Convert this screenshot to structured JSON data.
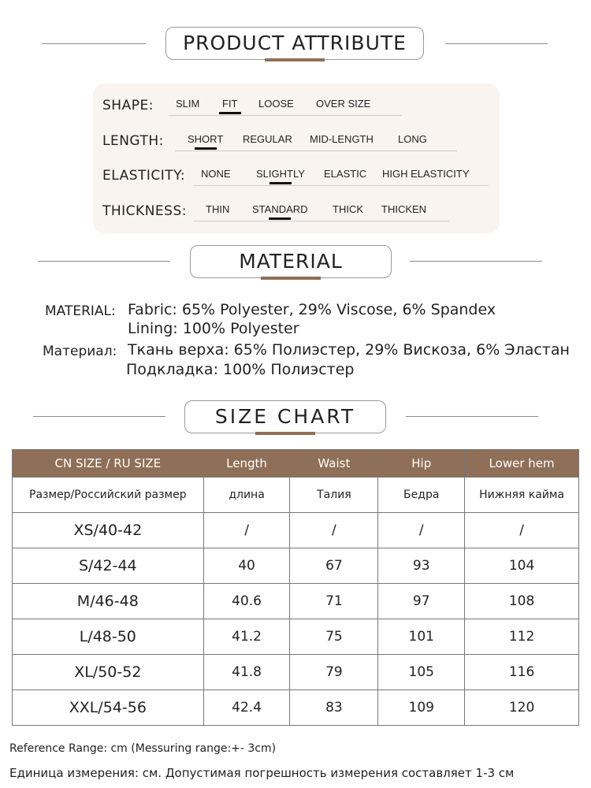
{
  "sections": {
    "attribute": "PRODUCT ATTRIBUTE",
    "material": "MATERIAL",
    "size_chart": "SIZE CHART"
  },
  "attributes": [
    {
      "label": "SHAPE:",
      "options": [
        "SLIM",
        "FIT",
        "LOOSE",
        "OVER SIZE"
      ],
      "selected": "FIT"
    },
    {
      "label": "LENGTH:",
      "options": [
        "SHORT",
        "REGULAR",
        "MID-LENGTH",
        "LONG"
      ],
      "selected": "SHORT"
    },
    {
      "label": "ELASTICITY:",
      "options": [
        "NONE",
        "SLIGHTLY",
        "ELASTIC",
        "HIGH ELASTICITY"
      ],
      "selected": "SLIGHTLY"
    },
    {
      "label": "THICKNESS:",
      "options": [
        "THIN",
        "STANDARD",
        "THICK",
        "THICKEN"
      ],
      "selected": "STANDARD"
    }
  ],
  "material": {
    "en_label": "MATERIAL:",
    "en_line1": "Fabric: 65% Polyester, 29% Viscose, 6% Spandex",
    "en_line2": "Lining: 100% Polyester",
    "ru_label": "Материал:",
    "ru_line1": "Ткань верха: 65% Полиэстер, 29% Вискоза, 6% Эластан",
    "ru_line2": "Подкладка: 100% Полиэстер"
  },
  "size_table": {
    "headers": [
      "CN SIZE / RU SIZE",
      "Length",
      "Waist",
      "Hip",
      "Lower hem"
    ],
    "sub_headers": [
      "Размер/Российский размер",
      "длина",
      "Талия",
      "Бедра",
      "Нижняя кайма"
    ],
    "rows": [
      [
        "XS/40-42",
        "/",
        "/",
        "/",
        "/"
      ],
      [
        "S/42-44",
        "40",
        "67",
        "93",
        "104"
      ],
      [
        "M/46-48",
        "40.6",
        "71",
        "97",
        "108"
      ],
      [
        "L/48-50",
        "41.2",
        "75",
        "101",
        "112"
      ],
      [
        "XL/50-52",
        "41.8",
        "79",
        "105",
        "116"
      ],
      [
        "XXL/54-56",
        "42.4",
        "83",
        "109",
        "120"
      ]
    ]
  },
  "footer": {
    "en": "Reference Range: cm (Messuring range:+- 3cm)",
    "ru": "Единица измерения: см. Допустимая погрешность измерения составляет 1-3 см"
  },
  "colors": {
    "accent": "#8f6f57",
    "panel": "#f9f4ef"
  }
}
